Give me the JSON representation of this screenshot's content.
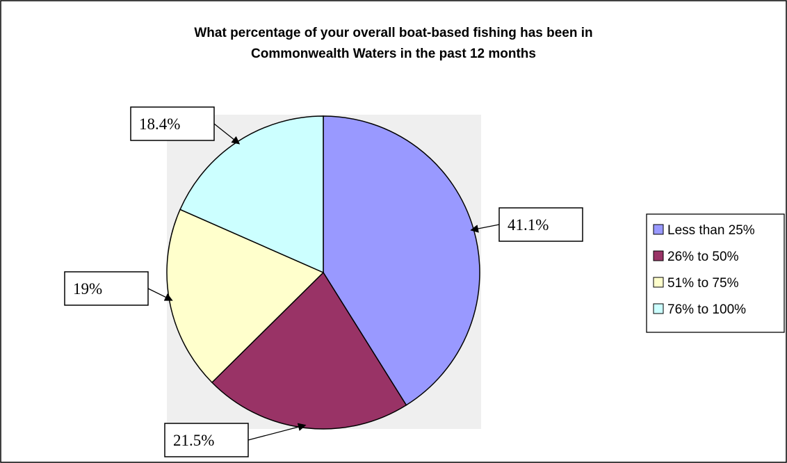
{
  "chart_data": {
    "type": "pie",
    "title": "What percentage of your overall boat-based fishing has been in Commonwealth Waters in the past 12 months",
    "title_lines": [
      "What percentage of your overall boat-based fishing has been in",
      "Commonwealth Waters in the past 12 months"
    ],
    "slices": [
      {
        "name": "Less than 25%",
        "value": 41.1,
        "label": "41.1%",
        "color": "#9999ff"
      },
      {
        "name": "26% to 50%",
        "value": 21.5,
        "label": "21.5%",
        "color": "#993366"
      },
      {
        "name": "51% to 75%",
        "value": 19,
        "label": "19%",
        "color": "#ffffcc"
      },
      {
        "name": "76% to 100%",
        "value": 18.4,
        "label": "18.4%",
        "color": "#ccffff"
      }
    ],
    "start_angle": "12 o'clock",
    "direction": "clockwise",
    "legend_position": "right",
    "plot_background": "#efefef",
    "border_color": "#000000"
  }
}
